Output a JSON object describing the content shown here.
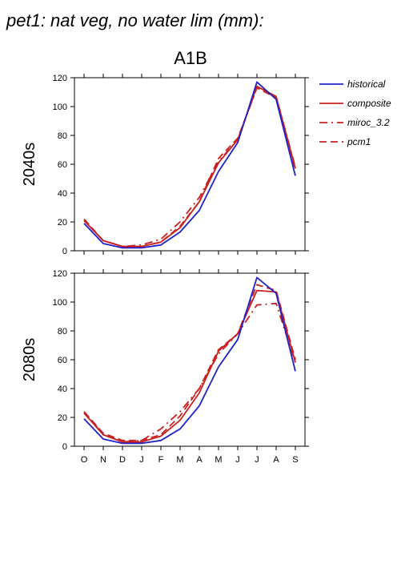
{
  "figure": {
    "title": "pet1: nat veg, no water lim (mm):",
    "scenario": "A1B"
  },
  "legend": [
    {
      "name": "historical",
      "color": "#2121c8",
      "dash": "solid"
    },
    {
      "name": "composite",
      "color": "#c82121",
      "dash": "solid"
    },
    {
      "name": "miroc_3.2",
      "color": "#c82121",
      "dash": "dashdot"
    },
    {
      "name": "pcm1",
      "color": "#c82121",
      "dash": "dashed"
    }
  ],
  "chart_data": [
    {
      "type": "line",
      "title": "2040s",
      "xlabel": "",
      "ylabel": "2040s",
      "categories": [
        "O",
        "N",
        "D",
        "J",
        "F",
        "M",
        "A",
        "M",
        "J",
        "J",
        "A",
        "S"
      ],
      "ylim": [
        0,
        120
      ],
      "yticks": [
        0,
        20,
        40,
        60,
        80,
        100,
        120
      ],
      "series": [
        {
          "name": "historical",
          "values": [
            19,
            5,
            2,
            2,
            4,
            13,
            28,
            55,
            75,
            117,
            105,
            52
          ]
        },
        {
          "name": "composite",
          "values": [
            21,
            7,
            3,
            3,
            6,
            16,
            34,
            61,
            77,
            114,
            107,
            57
          ]
        },
        {
          "name": "miroc_3.2",
          "values": [
            21,
            7,
            3,
            4,
            8,
            20,
            37,
            62,
            77,
            113,
            107,
            58
          ]
        },
        {
          "name": "pcm1",
          "values": [
            22,
            7,
            3,
            3,
            6,
            17,
            34,
            64,
            78,
            113,
            106,
            56
          ]
        }
      ]
    },
    {
      "type": "line",
      "title": "2080s",
      "xlabel": "",
      "ylabel": "2080s",
      "categories": [
        "O",
        "N",
        "D",
        "J",
        "F",
        "M",
        "A",
        "M",
        "J",
        "J",
        "A",
        "S"
      ],
      "ylim": [
        0,
        120
      ],
      "yticks": [
        0,
        20,
        40,
        60,
        80,
        100,
        120
      ],
      "series": [
        {
          "name": "historical",
          "values": [
            19,
            5,
            2,
            2,
            4,
            12,
            28,
            55,
            74,
            117,
            106,
            52
          ]
        },
        {
          "name": "composite",
          "values": [
            23,
            8,
            3,
            3,
            7,
            18,
            37,
            66,
            78,
            108,
            107,
            58
          ]
        },
        {
          "name": "miroc_3.2",
          "values": [
            24,
            8,
            3,
            4,
            12,
            24,
            40,
            64,
            78,
            98,
            99,
            58
          ]
        },
        {
          "name": "pcm1",
          "values": [
            24,
            9,
            4,
            4,
            8,
            21,
            40,
            67,
            78,
            112,
            108,
            60
          ]
        }
      ]
    }
  ]
}
